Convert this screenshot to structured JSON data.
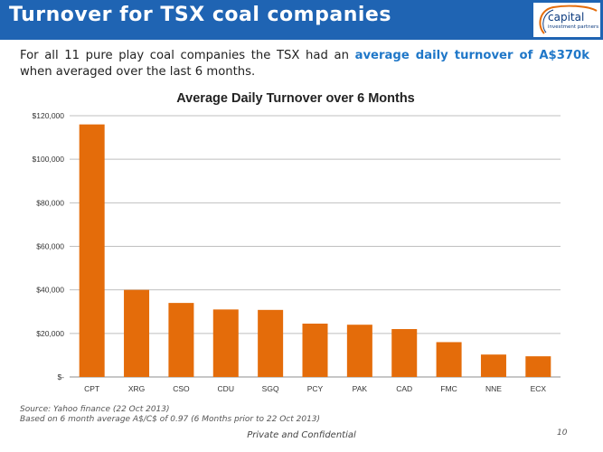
{
  "slide": {
    "title": "Turnover for TSX coal companies",
    "intro_before": "For all 11 pure play coal companies the TSX had an ",
    "intro_highlight": "average daily turnover of A$370k",
    "intro_after": " when averaged over the last 6 months.",
    "source_line1": "Source: Yahoo finance (22 Oct 2013)",
    "source_line2": "Based on 6 month average A$/C$ of 0.97 (6 Months prior to 22 Oct 2013)",
    "footer": "Private and Confidential",
    "page_number": "10"
  },
  "logo": {
    "word": "capital",
    "tagline": "investment partners"
  },
  "colors": {
    "title_bar": "#1f64b3",
    "highlight": "#1f77c8",
    "bar": "#e46c0a",
    "logo_accent": "#e46c0a"
  },
  "chart_data": {
    "type": "bar",
    "title": "Average Daily Turnover over 6 Months",
    "categories": [
      "CPT",
      "XRG",
      "CSO",
      "CDU",
      "SGQ",
      "PCY",
      "PAK",
      "CAD",
      "FMC",
      "NNE",
      "ECX"
    ],
    "values": [
      116000,
      40000,
      34000,
      31000,
      30800,
      24500,
      24000,
      22000,
      16000,
      10300,
      9500
    ],
    "y_ticks": [
      0,
      20000,
      40000,
      60000,
      80000,
      100000,
      120000
    ],
    "y_tick_labels": [
      "$-",
      "$20,000",
      "$40,000",
      "$60,000",
      "$80,000",
      "$100,000",
      "$120,000"
    ],
    "ylim": [
      0,
      120000
    ],
    "grid": true,
    "legend": "none"
  }
}
